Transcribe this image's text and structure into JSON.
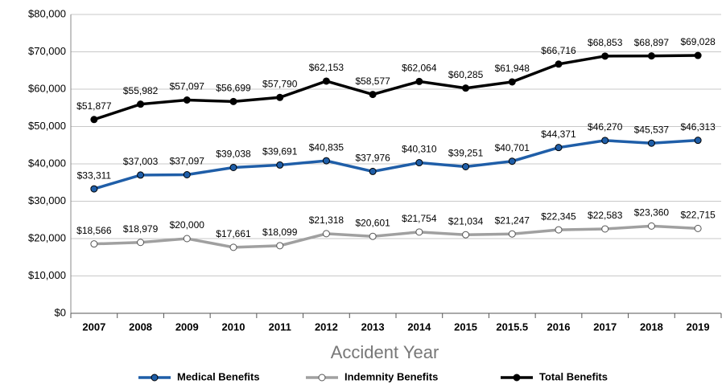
{
  "chart_data": {
    "type": "line",
    "x_label": "Accident Year",
    "categories": [
      "2007",
      "2008",
      "2009",
      "2010",
      "2011",
      "2012",
      "2013",
      "2014",
      "2015",
      "2015.5",
      "2016",
      "2017",
      "2018",
      "2019"
    ],
    "ylim": [
      0,
      80000
    ],
    "yticks": [
      {
        "value": 0,
        "label": "$0"
      },
      {
        "value": 10000,
        "label": "$10,000"
      },
      {
        "value": 20000,
        "label": "$20,000"
      },
      {
        "value": 30000,
        "label": "$30,000"
      },
      {
        "value": 40000,
        "label": "$40,000"
      },
      {
        "value": 50000,
        "label": "$50,000"
      },
      {
        "value": 60000,
        "label": "$60,000"
      },
      {
        "value": 70000,
        "label": "$70,000"
      },
      {
        "value": 80000,
        "label": "$80,000"
      }
    ],
    "grid": true,
    "legend": "bottom",
    "series": [
      {
        "name": "Medical Benefits",
        "color": "#1f5ea8",
        "marker_fill": "#1f5ea8",
        "values": [
          33311,
          37003,
          37097,
          39038,
          39691,
          40835,
          37976,
          40310,
          39251,
          40701,
          44371,
          46270,
          45537,
          46313
        ],
        "value_labels": [
          "$33,311",
          "$37,003",
          "$37,097",
          "$39,038",
          "$39,691",
          "$40,835",
          "$37,976",
          "$40,310",
          "$39,251",
          "$40,701",
          "$44,371",
          "$46,270",
          "$45,537",
          "$46,313"
        ]
      },
      {
        "name": "Indemnity Benefits",
        "color": "#a0a0a0",
        "marker_fill": "#ffffff",
        "values": [
          18566,
          18979,
          20000,
          17661,
          18099,
          21318,
          20601,
          21754,
          21034,
          21247,
          22345,
          22583,
          23360,
          22715
        ],
        "value_labels": [
          "$18,566",
          "$18,979",
          "$20,000",
          "$17,661",
          "$18,099",
          "$21,318",
          "$20,601",
          "$21,754",
          "$21,034",
          "$21,247",
          "$22,345",
          "$22,583",
          "$23,360",
          "$22,715"
        ]
      },
      {
        "name": "Total Benefits",
        "color": "#000000",
        "marker_fill": "#000000",
        "values": [
          51877,
          55982,
          57097,
          56699,
          57790,
          62153,
          58577,
          62064,
          60285,
          61948,
          66716,
          68853,
          68897,
          69028
        ],
        "value_labels": [
          "$51,877",
          "$55,982",
          "$57,097",
          "$56,699",
          "$57,790",
          "$62,153",
          "$58,577",
          "$62,064",
          "$60,285",
          "$61,948",
          "$66,716",
          "$68,853",
          "$68,897",
          "$69,028"
        ]
      }
    ]
  }
}
